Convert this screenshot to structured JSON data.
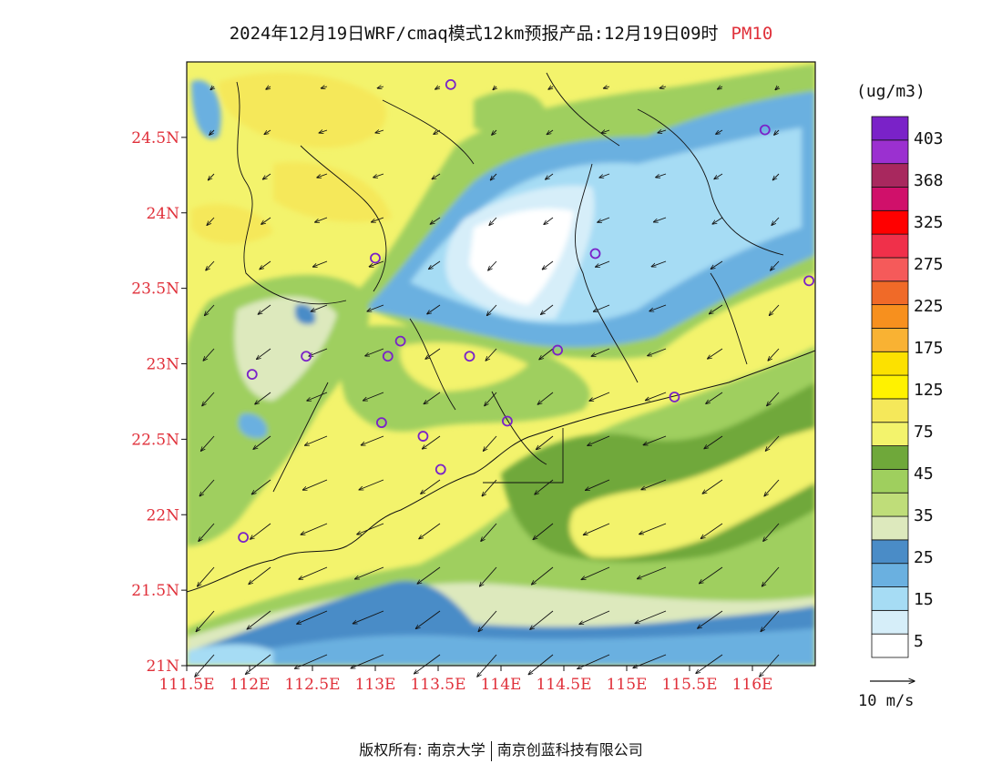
{
  "title": {
    "main": "2024年12月19日WRF/cmaq模式12km预报产品:12月19日09时",
    "pollutant": "PM10"
  },
  "axes": {
    "x_ticks": [
      "111.5E",
      "112E",
      "112.5E",
      "113E",
      "113.5E",
      "114E",
      "114.5E",
      "115E",
      "115.5E",
      "116E"
    ],
    "x_values": [
      111.5,
      112,
      112.5,
      113,
      113.5,
      114,
      114.5,
      115,
      115.5,
      116
    ],
    "y_ticks": [
      "21N",
      "21.5N",
      "22N",
      "22.5N",
      "23N",
      "23.5N",
      "24N",
      "24.5N"
    ],
    "y_values": [
      21,
      21.5,
      22,
      22.5,
      23,
      23.5,
      24,
      24.5
    ],
    "lon_range": [
      111.5,
      116.5
    ],
    "lat_range": [
      21,
      25
    ]
  },
  "colorbar": {
    "unit": "(ug/m3)",
    "labels": [
      "403",
      "368",
      "325",
      "275",
      "225",
      "175",
      "125",
      "75",
      "45",
      "35",
      "25",
      "15",
      "5"
    ],
    "bins": [
      {
        "color": "#ffffff"
      },
      {
        "color": "#d6eef9"
      },
      {
        "color": "#a6dcf4"
      },
      {
        "color": "#6ab0e0"
      },
      {
        "color": "#4a8cc7"
      },
      {
        "color": "#dde9bd"
      },
      {
        "color": "#bfdd79"
      },
      {
        "color": "#9fcf5e"
      },
      {
        "color": "#6fa83a"
      },
      {
        "color": "#f3f36c"
      },
      {
        "color": "#f5e85a"
      },
      {
        "color": "#fff200"
      },
      {
        "color": "#fce100"
      },
      {
        "color": "#f9b233"
      },
      {
        "color": "#f7901e"
      },
      {
        "color": "#f06a28"
      },
      {
        "color": "#f55a5a"
      },
      {
        "color": "#f0304a"
      },
      {
        "color": "#ff0000"
      },
      {
        "color": "#d0106a"
      },
      {
        "color": "#a8285e"
      },
      {
        "color": "#9b30d0"
      },
      {
        "color": "#7a22c8"
      }
    ]
  },
  "wind_reference": {
    "label": "10 m/s"
  },
  "stations": [
    {
      "lon": 113.6,
      "lat": 24.85
    },
    {
      "lon": 116.1,
      "lat": 24.55
    },
    {
      "lon": 113.0,
      "lat": 23.7
    },
    {
      "lon": 114.75,
      "lat": 23.73
    },
    {
      "lon": 116.45,
      "lat": 23.55
    },
    {
      "lon": 112.45,
      "lat": 23.05
    },
    {
      "lon": 113.1,
      "lat": 23.05
    },
    {
      "lon": 113.2,
      "lat": 23.15
    },
    {
      "lon": 113.75,
      "lat": 23.05
    },
    {
      "lon": 114.45,
      "lat": 23.09
    },
    {
      "lon": 112.02,
      "lat": 22.93
    },
    {
      "lon": 113.05,
      "lat": 22.61
    },
    {
      "lon": 113.38,
      "lat": 22.52
    },
    {
      "lon": 114.05,
      "lat": 22.62
    },
    {
      "lon": 113.52,
      "lat": 22.3
    },
    {
      "lon": 115.38,
      "lat": 22.78
    },
    {
      "lon": 111.95,
      "lat": 21.85
    }
  ],
  "footer": {
    "copyright": "版权所有: 南京大学",
    "company": "南京创蓝科技有限公司"
  }
}
